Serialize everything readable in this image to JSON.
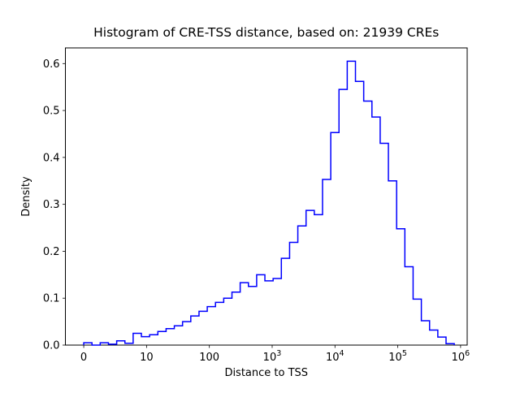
{
  "figure": {
    "background": "#ffffff"
  },
  "chart_data": {
    "type": "histogram-step",
    "title": "Histogram of CRE-TSS distance, based on: 21939 CREs",
    "xlabel": "Distance to TSS",
    "ylabel": "Density",
    "cre_count": 21939,
    "line_color": "#0000ff",
    "axis_color": "#000000",
    "x_scale_note": "log10 of distance, linear axis with decade tick labels",
    "x_tick_labels": [
      "0",
      "10",
      "100",
      "10^3",
      "10^4",
      "10^5",
      "10^6"
    ],
    "x_tick_log_positions": [
      0,
      1,
      2,
      3,
      4,
      5,
      6
    ],
    "y_tick_labels": [
      "0.0",
      "0.1",
      "0.2",
      "0.3",
      "0.4",
      "0.5",
      "0.6"
    ],
    "y_tick_values": [
      0.0,
      0.1,
      0.2,
      0.3,
      0.4,
      0.5,
      0.6
    ],
    "xlim_log": [
      -0.292,
      6.105
    ],
    "ylim": [
      0,
      0.6334
    ],
    "grid": false,
    "legend": false,
    "bins": {
      "start_log": 0,
      "width_log": 0.1311,
      "densities": [
        0.005,
        0.0,
        0.005,
        0.002,
        0.009,
        0.004,
        0.025,
        0.018,
        0.022,
        0.029,
        0.035,
        0.041,
        0.05,
        0.062,
        0.072,
        0.082,
        0.091,
        0.1,
        0.113,
        0.133,
        0.125,
        0.15,
        0.137,
        0.142,
        0.185,
        0.219,
        0.254,
        0.287,
        0.278,
        0.353,
        0.453,
        0.545,
        0.605,
        0.562,
        0.52,
        0.486,
        0.43,
        0.35,
        0.248,
        0.167,
        0.098,
        0.052,
        0.032,
        0.017,
        0.003
      ]
    }
  }
}
